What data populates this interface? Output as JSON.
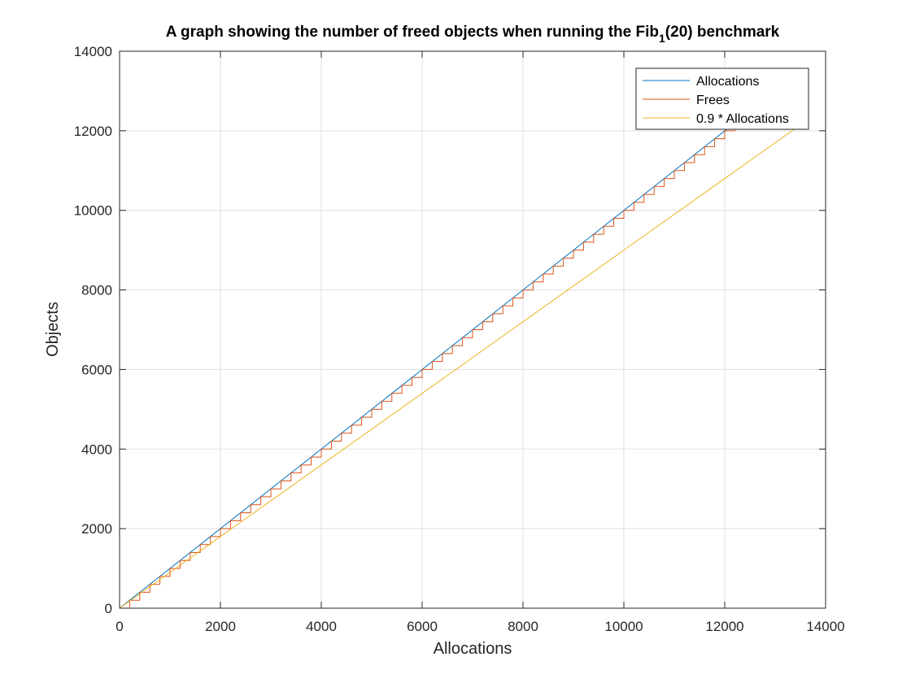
{
  "chart_data": {
    "type": "line",
    "title_main": "A graph showing the number of freed objects when running the Fib",
    "title_sub": "1",
    "title_end": "(20) benchmark",
    "xlabel": "Allocations",
    "ylabel": "Objects",
    "xlim": [
      0,
      14000
    ],
    "ylim": [
      0,
      14000
    ],
    "xticks": [
      0,
      2000,
      4000,
      6000,
      8000,
      10000,
      12000,
      14000
    ],
    "yticks": [
      0,
      2000,
      4000,
      6000,
      8000,
      10000,
      12000,
      14000
    ],
    "grid": true,
    "legend_position": "top-right",
    "series": [
      {
        "name": "Allocations",
        "color": "#0072BD",
        "kind": "identity",
        "x_range": [
          0,
          13500
        ]
      },
      {
        "name": "Frees",
        "color": "#D95319",
        "kind": "steps",
        "step_interval": 200,
        "x_range": [
          0,
          13500
        ]
      },
      {
        "name": "0.9 * Allocations",
        "color": "#EDB120",
        "kind": "scaled",
        "factor": 0.9,
        "x_range": [
          0,
          13500
        ]
      }
    ]
  }
}
